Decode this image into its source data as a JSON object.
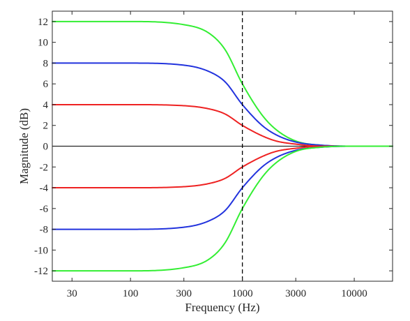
{
  "chart_data": {
    "type": "line",
    "title": "",
    "xlabel": "Frequency (Hz)",
    "ylabel": "Magnitude (dB)",
    "x_scale": "log",
    "xlim": [
      20,
      22000
    ],
    "ylim": [
      -13,
      13
    ],
    "xticks": [
      30,
      100,
      300,
      1000,
      3000,
      10000
    ],
    "xtick_labels": [
      "30",
      "100",
      "300",
      "1000",
      "3000",
      "10000"
    ],
    "yticks": [
      -12,
      -10,
      -8,
      -6,
      -4,
      -2,
      0,
      2,
      4,
      6,
      8,
      10,
      12
    ],
    "ytick_labels": [
      "-12",
      "-10",
      "-8",
      "-6",
      "-4",
      "-2",
      "0",
      "2",
      "4",
      "6",
      "8",
      "10",
      "12"
    ],
    "grid": false,
    "zero_line": 0,
    "reference_line": {
      "x": 1000,
      "style": "dashed",
      "color": "#000000"
    },
    "series": [
      {
        "color": "#33ee33",
        "x": [
          20,
          100,
          300,
          500,
          700,
          1000,
          1500,
          2000,
          3000,
          5000,
          10000,
          22000
        ],
        "y": [
          12,
          12,
          11.7,
          10.9,
          9.3,
          6,
          3,
          1.6,
          0.5,
          0.1,
          0,
          0
        ]
      },
      {
        "color": "#2233dd",
        "x": [
          20,
          100,
          300,
          500,
          700,
          1000,
          1500,
          2000,
          3000,
          5000,
          10000,
          22000
        ],
        "y": [
          8,
          8,
          7.8,
          7.2,
          6.2,
          4,
          2,
          1.1,
          0.4,
          0.1,
          0,
          0
        ]
      },
      {
        "color": "#ee2222",
        "x": [
          20,
          100,
          300,
          500,
          700,
          1000,
          1500,
          2000,
          3000,
          5000,
          10000,
          22000
        ],
        "y": [
          4,
          4,
          3.9,
          3.6,
          3.1,
          2,
          1,
          0.5,
          0.2,
          0,
          0,
          0
        ]
      },
      {
        "color": "#ee2222",
        "x": [
          20,
          100,
          300,
          500,
          700,
          1000,
          1500,
          2000,
          3000,
          5000,
          10000,
          22000
        ],
        "y": [
          -4,
          -4,
          -3.9,
          -3.6,
          -3.1,
          -2,
          -1,
          -0.5,
          -0.2,
          0,
          0,
          0
        ]
      },
      {
        "color": "#2233dd",
        "x": [
          20,
          100,
          300,
          500,
          700,
          1000,
          1500,
          2000,
          3000,
          5000,
          10000,
          22000
        ],
        "y": [
          -8,
          -8,
          -7.8,
          -7.2,
          -6.2,
          -4,
          -2,
          -1.1,
          -0.4,
          -0.1,
          0,
          0
        ]
      },
      {
        "color": "#33ee33",
        "x": [
          20,
          100,
          300,
          500,
          700,
          1000,
          1500,
          2000,
          3000,
          5000,
          10000,
          22000
        ],
        "y": [
          -12,
          -12,
          -11.7,
          -10.9,
          -9.3,
          -6,
          -3,
          -1.6,
          -0.5,
          -0.1,
          0,
          0
        ]
      }
    ]
  }
}
